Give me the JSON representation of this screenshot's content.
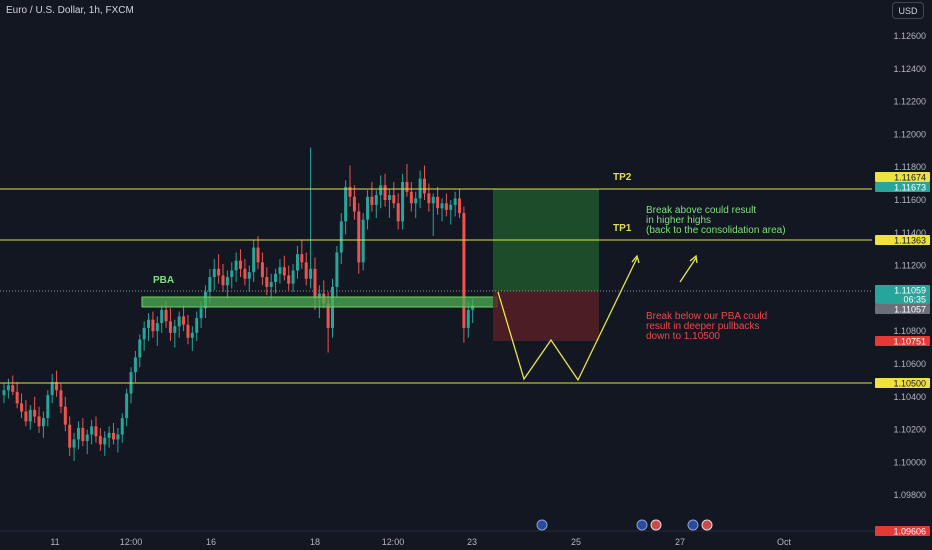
{
  "header": {
    "title": "Euro / U.S. Dollar, 1h, FXCM",
    "currency": "USD"
  },
  "colors": {
    "background": "#131722",
    "up": "#26a69a",
    "down": "#ef5350",
    "level_line": "#e0e04a",
    "green_text": "#7ee07e",
    "red_text": "#f04848",
    "zone_green": "#4caf50"
  },
  "chart_data": {
    "type": "candlestick",
    "title": "Euro / U.S. Dollar, 1h, FXCM",
    "ylim": [
      1.0955,
      1.1275
    ],
    "y_ticks": [
      "1.12600",
      "1.12400",
      "1.12200",
      "1.12000",
      "1.11800",
      "1.11600",
      "1.11400",
      "1.11200",
      "1.11000",
      "1.10800",
      "1.10600",
      "1.10400",
      "1.10200",
      "1.10000",
      "1.09800"
    ],
    "x_ticks": [
      "11",
      "12:00",
      "16",
      "18",
      "12:00",
      "23",
      "25",
      "27",
      "Oct"
    ],
    "levels": [
      {
        "price": 1.11674,
        "label": "TP2"
      },
      {
        "price": 1.11363,
        "label": "TP1"
      },
      {
        "price": 1.105,
        "label": ""
      }
    ],
    "pba_zone": {
      "label": "PBA",
      "from": 1.1098,
      "to": 1.1103
    },
    "position": {
      "entry": 1.11059,
      "target": 1.11674,
      "stop": 1.10751
    },
    "price_badges": [
      {
        "text": "1.11674",
        "style": "yellow"
      },
      {
        "text": "1.11673",
        "style": "green"
      },
      {
        "text": "1.11363",
        "style": "yellow"
      },
      {
        "text": "1.11059",
        "style": "green"
      },
      {
        "text": "06:35",
        "style": "green"
      },
      {
        "text": "1.11057",
        "style": "gray"
      },
      {
        "text": "1.10751",
        "style": "red"
      },
      {
        "text": "1.10500",
        "style": "yellow"
      },
      {
        "text": "1.09606",
        "style": "red"
      }
    ],
    "annotations": {
      "tp2": "TP2",
      "tp1": "TP1",
      "pba": "PBA",
      "bull_note": [
        "Break above could result",
        "in higher highs",
        "(back to the consolidation area)"
      ],
      "bear_note": [
        "Break below our PBA could",
        "result in deeper pullbacks",
        "down to 1.10500"
      ]
    },
    "candles": [
      [
        1.1041,
        1.1048,
        1.1036,
        1.1044
      ],
      [
        1.1044,
        1.1051,
        1.1039,
        1.1047
      ],
      [
        1.1047,
        1.1053,
        1.1041,
        1.1043
      ],
      [
        1.1043,
        1.1049,
        1.1033,
        1.1036
      ],
      [
        1.1036,
        1.1042,
        1.1027,
        1.1031
      ],
      [
        1.1031,
        1.1038,
        1.1022,
        1.1025
      ],
      [
        1.1025,
        1.1035,
        1.102,
        1.1032
      ],
      [
        1.1032,
        1.104,
        1.1024,
        1.1028
      ],
      [
        1.1028,
        1.1034,
        1.1018,
        1.1022
      ],
      [
        1.1022,
        1.1031,
        1.1015,
        1.1027
      ],
      [
        1.1027,
        1.1044,
        1.1022,
        1.1041
      ],
      [
        1.1041,
        1.1054,
        1.1036,
        1.1049
      ],
      [
        1.1049,
        1.1056,
        1.104,
        1.1044
      ],
      [
        1.1044,
        1.1048,
        1.103,
        1.1034
      ],
      [
        1.1034,
        1.104,
        1.1019,
        1.1023
      ],
      [
        1.1023,
        1.1028,
        1.1004,
        1.1009
      ],
      [
        1.1009,
        1.1018,
        1.1001,
        1.1014
      ],
      [
        1.1014,
        1.1025,
        1.1008,
        1.1021
      ],
      [
        1.1021,
        1.1027,
        1.101,
        1.1013
      ],
      [
        1.1013,
        1.102,
        1.1005,
        1.1017
      ],
      [
        1.1017,
        1.1026,
        1.1011,
        1.1022
      ],
      [
        1.1022,
        1.1028,
        1.1012,
        1.1016
      ],
      [
        1.1016,
        1.1021,
        1.1007,
        1.1011
      ],
      [
        1.1011,
        1.1019,
        1.1004,
        1.1015
      ],
      [
        1.1015,
        1.1022,
        1.1009,
        1.1018
      ],
      [
        1.1018,
        1.1024,
        1.1011,
        1.1014
      ],
      [
        1.1014,
        1.1021,
        1.1006,
        1.1017
      ],
      [
        1.1017,
        1.103,
        1.1012,
        1.1027
      ],
      [
        1.1027,
        1.1045,
        1.1022,
        1.1042
      ],
      [
        1.1042,
        1.1058,
        1.1036,
        1.1055
      ],
      [
        1.1055,
        1.1068,
        1.1049,
        1.1064
      ],
      [
        1.1064,
        1.1078,
        1.1058,
        1.1075
      ],
      [
        1.1075,
        1.1086,
        1.1068,
        1.1082
      ],
      [
        1.1082,
        1.1091,
        1.1074,
        1.1087
      ],
      [
        1.1087,
        1.1092,
        1.1076,
        1.108
      ],
      [
        1.108,
        1.1089,
        1.1071,
        1.1085
      ],
      [
        1.1085,
        1.1096,
        1.1079,
        1.1093
      ],
      [
        1.1093,
        1.1098,
        1.1082,
        1.1086
      ],
      [
        1.1086,
        1.1094,
        1.1074,
        1.1079
      ],
      [
        1.1079,
        1.1087,
        1.107,
        1.1083
      ],
      [
        1.1083,
        1.1092,
        1.1076,
        1.1089
      ],
      [
        1.1089,
        1.1096,
        1.108,
        1.1084
      ],
      [
        1.1084,
        1.109,
        1.1072,
        1.1076
      ],
      [
        1.1076,
        1.1083,
        1.1068,
        1.1079
      ],
      [
        1.1079,
        1.1092,
        1.1074,
        1.1088
      ],
      [
        1.1088,
        1.1098,
        1.1082,
        1.1094
      ],
      [
        1.1094,
        1.1108,
        1.1088,
        1.1104
      ],
      [
        1.1104,
        1.1118,
        1.1097,
        1.1113
      ],
      [
        1.1113,
        1.1124,
        1.1105,
        1.1118
      ],
      [
        1.1118,
        1.1127,
        1.1109,
        1.1114
      ],
      [
        1.1114,
        1.1121,
        1.1104,
        1.1108
      ],
      [
        1.1108,
        1.1117,
        1.11,
        1.1113
      ],
      [
        1.1113,
        1.1122,
        1.1106,
        1.1117
      ],
      [
        1.1117,
        1.1128,
        1.111,
        1.1123
      ],
      [
        1.1123,
        1.113,
        1.1113,
        1.1118
      ],
      [
        1.1118,
        1.1124,
        1.1108,
        1.1112
      ],
      [
        1.1112,
        1.112,
        1.1104,
        1.1116
      ],
      [
        1.1116,
        1.1136,
        1.111,
        1.1131
      ],
      [
        1.1131,
        1.1138,
        1.1118,
        1.1122
      ],
      [
        1.1122,
        1.1128,
        1.1108,
        1.1113
      ],
      [
        1.1113,
        1.1119,
        1.1102,
        1.1107
      ],
      [
        1.1107,
        1.1115,
        1.1099,
        1.111
      ],
      [
        1.111,
        1.1118,
        1.1103,
        1.1115
      ],
      [
        1.1115,
        1.1124,
        1.1109,
        1.1119
      ],
      [
        1.1119,
        1.1126,
        1.1111,
        1.1114
      ],
      [
        1.1114,
        1.112,
        1.1105,
        1.1109
      ],
      [
        1.1109,
        1.1121,
        1.1104,
        1.1117
      ],
      [
        1.1117,
        1.1132,
        1.1112,
        1.1127
      ],
      [
        1.1127,
        1.1136,
        1.1118,
        1.1122
      ],
      [
        1.1122,
        1.1128,
        1.1108,
        1.1112
      ],
      [
        1.1112,
        1.1192,
        1.1106,
        1.1118
      ],
      [
        1.1118,
        1.1125,
        1.1093,
        1.11
      ],
      [
        1.11,
        1.1108,
        1.1088,
        1.1103
      ],
      [
        1.1103,
        1.1111,
        1.1094,
        1.1097
      ],
      [
        1.1097,
        1.1104,
        1.1067,
        1.1082
      ],
      [
        1.1082,
        1.1112,
        1.1076,
        1.1107
      ],
      [
        1.1107,
        1.1132,
        1.1101,
        1.1128
      ],
      [
        1.1128,
        1.1152,
        1.1121,
        1.1147
      ],
      [
        1.1147,
        1.1172,
        1.1139,
        1.1168
      ],
      [
        1.1168,
        1.1181,
        1.1156,
        1.1162
      ],
      [
        1.1162,
        1.1169,
        1.1148,
        1.1153
      ],
      [
        1.1153,
        1.1158,
        1.1115,
        1.1122
      ],
      [
        1.1122,
        1.1152,
        1.1117,
        1.1148
      ],
      [
        1.1148,
        1.1166,
        1.1142,
        1.1162
      ],
      [
        1.1162,
        1.1171,
        1.1153,
        1.1157
      ],
      [
        1.1157,
        1.1166,
        1.1149,
        1.1163
      ],
      [
        1.1163,
        1.1175,
        1.1155,
        1.1169
      ],
      [
        1.1169,
        1.1176,
        1.1156,
        1.116
      ],
      [
        1.116,
        1.1167,
        1.1149,
        1.1163
      ],
      [
        1.1163,
        1.1171,
        1.1155,
        1.1158
      ],
      [
        1.1158,
        1.1164,
        1.1142,
        1.1147
      ],
      [
        1.1147,
        1.1176,
        1.1142,
        1.1171
      ],
      [
        1.1171,
        1.1182,
        1.1162,
        1.1165
      ],
      [
        1.1165,
        1.1171,
        1.1153,
        1.1158
      ],
      [
        1.1158,
        1.1165,
        1.1149,
        1.1161
      ],
      [
        1.1161,
        1.1178,
        1.1155,
        1.1173
      ],
      [
        1.1173,
        1.1181,
        1.116,
        1.1164
      ],
      [
        1.1164,
        1.117,
        1.1153,
        1.1158
      ],
      [
        1.1158,
        1.1164,
        1.1138,
        1.1162
      ],
      [
        1.1162,
        1.1168,
        1.1151,
        1.1155
      ],
      [
        1.1155,
        1.1161,
        1.1147,
        1.1158
      ],
      [
        1.1158,
        1.1164,
        1.115,
        1.1154
      ],
      [
        1.1154,
        1.116,
        1.1145,
        1.1157
      ],
      [
        1.1157,
        1.1165,
        1.115,
        1.1161
      ],
      [
        1.1161,
        1.1167,
        1.1149,
        1.1152
      ],
      [
        1.1152,
        1.1156,
        1.1073,
        1.1082
      ],
      [
        1.1082,
        1.1098,
        1.1076,
        1.1093
      ],
      [
        1.1093,
        1.11,
        1.1085,
        1.1096
      ]
    ]
  }
}
